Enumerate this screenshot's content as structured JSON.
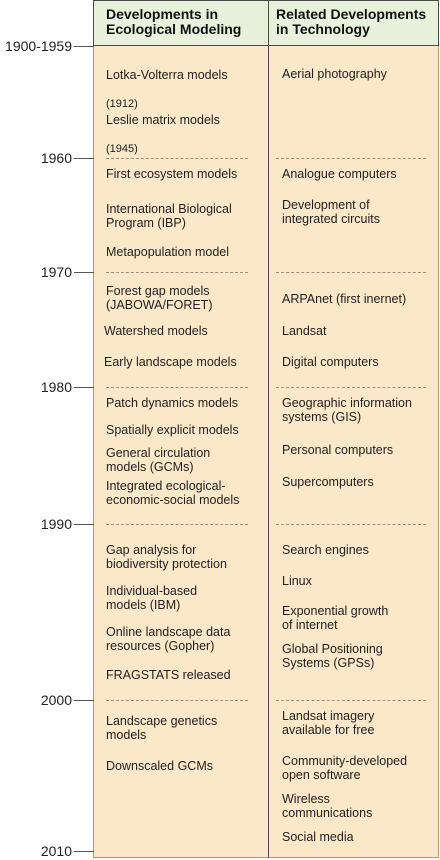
{
  "headers": {
    "modeling": "Developments in\nEcological Modeling",
    "technology": "Related Developments\nin Technology"
  },
  "years": [
    "1900-1959",
    "1960",
    "1970",
    "1980",
    "1990",
    "2000",
    "2010"
  ],
  "modeling": [
    {
      "text": "Lotka-Volterra models",
      "sub": "(1912)"
    },
    {
      "text": "Leslie matrix models",
      "sub": "(1945)"
    },
    {
      "text": "First ecosystem models"
    },
    {
      "text": "International Biological\nProgram (IBP)"
    },
    {
      "text": "Metapopulation model"
    },
    {
      "text": "Forest gap models\n(JABOWA/FORET)"
    },
    {
      "text": "Watershed models"
    },
    {
      "text": "Early landscape models"
    },
    {
      "text": "Patch dynamics models"
    },
    {
      "text": "Spatially explicit models"
    },
    {
      "text": "General circulation\nmodels (GCMs)"
    },
    {
      "text": "Integrated ecological-\neconomic-social models"
    },
    {
      "text": "Gap analysis for\nbiodiversity protection"
    },
    {
      "text": "Individual-based\nmodels (IBM)"
    },
    {
      "text": "Online landscape data\nresources (Gopher)"
    },
    {
      "text": "FRAGSTATS released"
    },
    {
      "text": "Landscape genetics\nmodels"
    },
    {
      "text": "Downscaled GCMs"
    }
  ],
  "technology": [
    "Aerial photography",
    "Analogue computers",
    "Development of\nintegrated circuits",
    "ARPAnet (first inernet)",
    "Landsat",
    "Digital computers",
    "Geographic information\nsystems (GIS)",
    "Personal computers",
    "Supercomputers",
    "Search engines",
    "Linux",
    "Exponential growth\nof internet",
    "Global Positioning\nSystems (GPSs)",
    "Landsat imagery\navailable for free",
    "Community-developed\nopen software",
    "Wireless\ncommunications",
    "Social media"
  ]
}
